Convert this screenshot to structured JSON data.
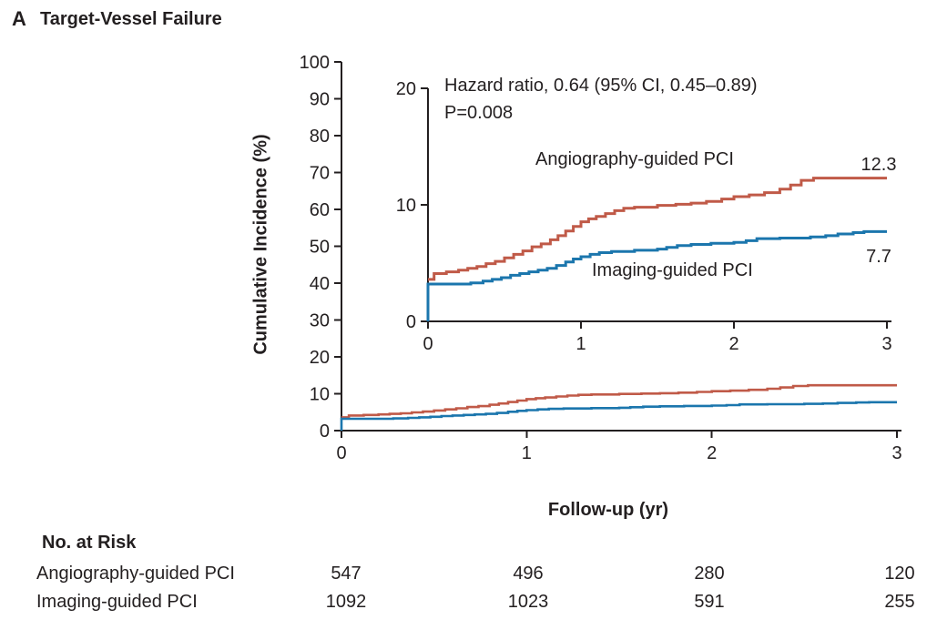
{
  "panel": {
    "label": "A",
    "title": "Target-Vessel Failure"
  },
  "chart_data": {
    "type": "line",
    "title": "Target-Vessel Failure",
    "xlabel": "Follow-up (yr)",
    "ylabel": "Cumulative Incidence (%)",
    "main_axis": {
      "xticks": [
        0,
        1,
        2,
        3
      ],
      "yticks": [
        0,
        10,
        20,
        30,
        40,
        50,
        60,
        70,
        80,
        90,
        100
      ],
      "xlim": [
        0,
        3
      ],
      "ylim": [
        0,
        100
      ],
      "grid": false
    },
    "inset_axis": {
      "xticks": [
        0,
        1,
        2,
        3
      ],
      "yticks": [
        0,
        10,
        20
      ],
      "xlim": [
        0,
        3
      ],
      "ylim": [
        0,
        20
      ],
      "grid": false
    },
    "annotation": {
      "line1": "Hazard ratio, 0.64 (95% CI, 0.45–0.89)",
      "line2": "P=0.008"
    },
    "legend_position": "curve-labels-inline",
    "series": [
      {
        "name": "Angiography-guided PCI",
        "color": "#c05a48",
        "end_label": "12.3",
        "points": [
          [
            0,
            3.6
          ],
          [
            0.04,
            4.1
          ],
          [
            0.12,
            4.25
          ],
          [
            0.2,
            4.4
          ],
          [
            0.26,
            4.55
          ],
          [
            0.32,
            4.7
          ],
          [
            0.38,
            4.95
          ],
          [
            0.44,
            5.15
          ],
          [
            0.5,
            5.45
          ],
          [
            0.56,
            5.75
          ],
          [
            0.62,
            6.05
          ],
          [
            0.68,
            6.4
          ],
          [
            0.74,
            6.65
          ],
          [
            0.8,
            7.0
          ],
          [
            0.85,
            7.35
          ],
          [
            0.9,
            7.75
          ],
          [
            0.95,
            8.15
          ],
          [
            1.0,
            8.55
          ],
          [
            1.05,
            8.8
          ],
          [
            1.1,
            9.0
          ],
          [
            1.16,
            9.25
          ],
          [
            1.22,
            9.5
          ],
          [
            1.28,
            9.7
          ],
          [
            1.35,
            9.8
          ],
          [
            1.5,
            9.95
          ],
          [
            1.62,
            10.05
          ],
          [
            1.72,
            10.15
          ],
          [
            1.82,
            10.3
          ],
          [
            1.92,
            10.5
          ],
          [
            2.0,
            10.7
          ],
          [
            2.1,
            10.85
          ],
          [
            2.2,
            11.05
          ],
          [
            2.3,
            11.35
          ],
          [
            2.37,
            11.7
          ],
          [
            2.44,
            12.1
          ],
          [
            2.52,
            12.3
          ],
          [
            3.0,
            12.3
          ]
        ]
      },
      {
        "name": "Imaging-guided PCI",
        "color": "#1b76ad",
        "end_label": "7.7",
        "points": [
          [
            0,
            0
          ],
          [
            0,
            3.2
          ],
          [
            0.28,
            3.3
          ],
          [
            0.36,
            3.45
          ],
          [
            0.42,
            3.6
          ],
          [
            0.48,
            3.75
          ],
          [
            0.54,
            3.95
          ],
          [
            0.6,
            4.1
          ],
          [
            0.66,
            4.25
          ],
          [
            0.72,
            4.4
          ],
          [
            0.78,
            4.55
          ],
          [
            0.84,
            4.8
          ],
          [
            0.9,
            5.1
          ],
          [
            0.95,
            5.35
          ],
          [
            1.0,
            5.55
          ],
          [
            1.06,
            5.75
          ],
          [
            1.12,
            5.9
          ],
          [
            1.2,
            6.0
          ],
          [
            1.35,
            6.1
          ],
          [
            1.5,
            6.2
          ],
          [
            1.56,
            6.35
          ],
          [
            1.63,
            6.5
          ],
          [
            1.72,
            6.6
          ],
          [
            1.85,
            6.7
          ],
          [
            2.0,
            6.78
          ],
          [
            2.08,
            6.92
          ],
          [
            2.15,
            7.1
          ],
          [
            2.3,
            7.15
          ],
          [
            2.5,
            7.25
          ],
          [
            2.6,
            7.35
          ],
          [
            2.68,
            7.5
          ],
          [
            2.78,
            7.62
          ],
          [
            2.85,
            7.7
          ],
          [
            3.0,
            7.7
          ]
        ]
      }
    ]
  },
  "risk_table": {
    "header": "No. at Risk",
    "time_points": [
      0,
      1,
      2,
      3
    ],
    "rows": [
      {
        "label": "Angiography-guided PCI",
        "counts": [
          "547",
          "496",
          "280",
          "120"
        ]
      },
      {
        "label": "Imaging-guided PCI",
        "counts": [
          "1092",
          "1023",
          "591",
          "255"
        ]
      }
    ]
  },
  "colors": {
    "angiography": "#c05a48",
    "imaging": "#1b76ad",
    "text": "#231f20",
    "axis": "#231f20"
  }
}
